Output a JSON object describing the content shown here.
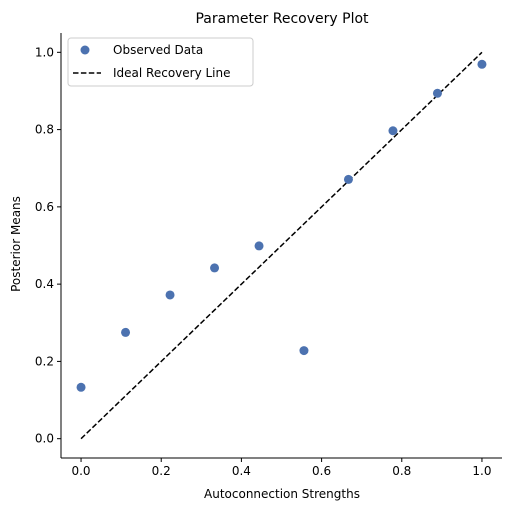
{
  "chart_data": {
    "type": "scatter",
    "title": "Parameter Recovery Plot",
    "xlabel": "Autoconnection Strengths",
    "ylabel": "Posterior Means",
    "xlim": [
      -0.05,
      1.05
    ],
    "ylim": [
      -0.05,
      1.05
    ],
    "xticks": [
      0.0,
      0.2,
      0.4,
      0.6,
      0.8,
      1.0
    ],
    "yticks": [
      0.0,
      0.2,
      0.4,
      0.6,
      0.8,
      1.0
    ],
    "xtick_labels": [
      "0.0",
      "0.2",
      "0.4",
      "0.6",
      "0.8",
      "1.0"
    ],
    "ytick_labels": [
      "0.0",
      "0.2",
      "0.4",
      "0.6",
      "0.8",
      "1.0"
    ],
    "grid": false,
    "legend_placement": "upper-left",
    "series": [
      {
        "name": "Observed Data",
        "kind": "scatter",
        "color": "#4c72b0",
        "x": [
          0.0,
          0.111,
          0.222,
          0.333,
          0.444,
          0.556,
          0.667,
          0.778,
          0.889,
          1.0
        ],
        "y": [
          0.133,
          0.275,
          0.372,
          0.442,
          0.499,
          0.228,
          0.671,
          0.797,
          0.894,
          0.969
        ]
      },
      {
        "name": "Ideal Recovery Line",
        "kind": "line",
        "style": "dashed",
        "color": "#000000",
        "x": [
          0.0,
          1.0
        ],
        "y": [
          0.0,
          1.0
        ]
      }
    ]
  }
}
